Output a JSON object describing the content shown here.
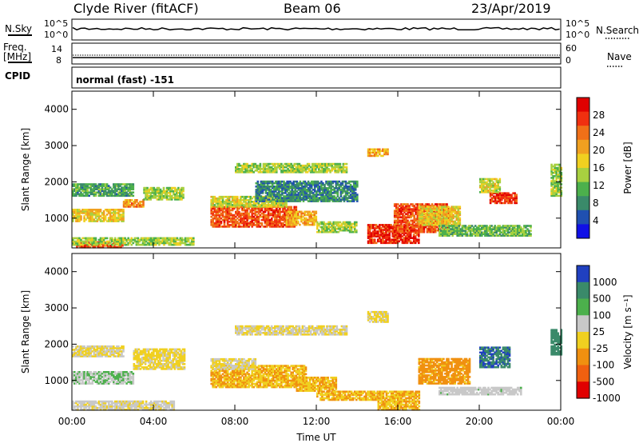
{
  "header": {
    "station": "Clyde River (fitACF)",
    "beam": "Beam 06",
    "date": "23/Apr/2019"
  },
  "strips": {
    "nsky_label": "N.Sky",
    "nsky_ticks": [
      "10^5",
      "10^0"
    ],
    "nsearch_label": "N.Search",
    "nsearch_ticks": [
      "10^5",
      "10^0"
    ],
    "freq_label": "Freq.",
    "freq_unit": "[MHz]",
    "freq_ticks": [
      "14",
      "8"
    ],
    "nave_label": "Nave",
    "nave_ticks": [
      "60",
      "0"
    ],
    "cpid_label": "CPID",
    "cpid_value": "normal (fast) -151"
  },
  "chart_data": [
    {
      "type": "heatmap",
      "name": "power",
      "ylabel": "Slant Range [km]",
      "xlabel": "",
      "yticks": [
        "1000",
        "2000",
        "3000",
        "4000"
      ],
      "xticks": [
        "00:00",
        "04:00",
        "08:00",
        "12:00",
        "16:00",
        "20:00",
        "00:00"
      ],
      "xlim_hours": [
        0,
        24
      ],
      "ylim_km": [
        180,
        4500
      ],
      "colorbar": {
        "label": "Power [dB]",
        "ticks": [
          "4",
          "8",
          "12",
          "16",
          "20",
          "24",
          "28"
        ],
        "colors": [
          "#1010e6",
          "#2050b0",
          "#3a8a6a",
          "#4cb04c",
          "#a8d040",
          "#f0d020",
          "#f0a020",
          "#f07018",
          "#f03010",
          "#e00000"
        ],
        "range": [
          0,
          32
        ]
      },
      "regions": [
        {
          "t": [
            0.0,
            2.5
          ],
          "r": [
            900,
            1250
          ],
          "v": 18
        },
        {
          "t": [
            2.5,
            3.5
          ],
          "r": [
            1300,
            1500
          ],
          "v": 22
        },
        {
          "t": [
            3.5,
            5.5
          ],
          "r": [
            1500,
            1850
          ],
          "v": 14
        },
        {
          "t": [
            0.0,
            3.0
          ],
          "r": [
            1600,
            1950
          ],
          "v": 10
        },
        {
          "t": [
            0.2,
            2.5
          ],
          "r": [
            180,
            350
          ],
          "v": 26
        },
        {
          "t": [
            0.0,
            6.0
          ],
          "r": [
            250,
            450
          ],
          "v": 14
        },
        {
          "t": [
            6.8,
            11.0
          ],
          "r": [
            750,
            1300
          ],
          "v": 26
        },
        {
          "t": [
            6.8,
            10.5
          ],
          "r": [
            1300,
            1600
          ],
          "v": 16
        },
        {
          "t": [
            10.5,
            12.0
          ],
          "r": [
            800,
            1200
          ],
          "v": 20
        },
        {
          "t": [
            8.0,
            13.5
          ],
          "r": [
            2250,
            2500
          ],
          "v": 14
        },
        {
          "t": [
            9.0,
            14.0
          ],
          "r": [
            1450,
            2000
          ],
          "v": 8
        },
        {
          "t": [
            12.0,
            14.0
          ],
          "r": [
            600,
            900
          ],
          "v": 14
        },
        {
          "t": [
            14.5,
            17.0
          ],
          "r": [
            300,
            800
          ],
          "v": 28
        },
        {
          "t": [
            15.8,
            18.5
          ],
          "r": [
            600,
            1400
          ],
          "v": 26
        },
        {
          "t": [
            17.0,
            19.0
          ],
          "r": [
            800,
            1300
          ],
          "v": 18
        },
        {
          "t": [
            18.0,
            22.5
          ],
          "r": [
            500,
            800
          ],
          "v": 12
        },
        {
          "t": [
            20.5,
            21.8
          ],
          "r": [
            1400,
            1700
          ],
          "v": 28
        },
        {
          "t": [
            20.0,
            21.0
          ],
          "r": [
            1700,
            2100
          ],
          "v": 16
        },
        {
          "t": [
            23.5,
            24.0
          ],
          "r": [
            1600,
            2500
          ],
          "v": 14
        },
        {
          "t": [
            14.5,
            15.5
          ],
          "r": [
            2700,
            2900
          ],
          "v": 20
        }
      ]
    },
    {
      "type": "heatmap",
      "name": "velocity",
      "ylabel": "Slant Range [km]",
      "xlabel": "Time UT",
      "yticks": [
        "1000",
        "2000",
        "3000",
        "4000"
      ],
      "xticks": [
        "00:00",
        "04:00",
        "08:00",
        "12:00",
        "16:00",
        "20:00",
        "00:00"
      ],
      "xlim_hours": [
        0,
        24
      ],
      "ylim_km": [
        180,
        4500
      ],
      "colorbar": {
        "label": "Velocity [m s⁻¹]",
        "ticks": [
          "1000",
          "500",
          "100",
          "25",
          "-25",
          "-100",
          "-500",
          "-1000"
        ],
        "colors": [
          "#2040c0",
          "#3a8a6a",
          "#4cb04c",
          "#c8c8c8",
          "#f0d020",
          "#f09010",
          "#f06010",
          "#e00000"
        ],
        "range": [
          -1250,
          1250
        ]
      },
      "regions": [
        {
          "t": [
            0.0,
            3.0
          ],
          "r": [
            900,
            1250
          ],
          "v": 300
        },
        {
          "t": [
            0.0,
            2.5
          ],
          "r": [
            1650,
            1950
          ],
          "v": 0
        },
        {
          "t": [
            3.0,
            5.5
          ],
          "r": [
            1300,
            1850
          ],
          "v": -60
        },
        {
          "t": [
            0.0,
            5.0
          ],
          "r": [
            180,
            450
          ],
          "v": 60
        },
        {
          "t": [
            6.8,
            11.5
          ],
          "r": [
            800,
            1400
          ],
          "v": -300
        },
        {
          "t": [
            6.8,
            9.0
          ],
          "r": [
            1300,
            1600
          ],
          "v": 0
        },
        {
          "t": [
            8.0,
            13.5
          ],
          "r": [
            2250,
            2500
          ],
          "v": 0
        },
        {
          "t": [
            11.0,
            13.0
          ],
          "r": [
            700,
            1100
          ],
          "v": -300
        },
        {
          "t": [
            12.0,
            15.0
          ],
          "r": [
            450,
            700
          ],
          "v": -300
        },
        {
          "t": [
            15.0,
            17.0
          ],
          "r": [
            180,
            700
          ],
          "v": -300
        },
        {
          "t": [
            17.0,
            19.5
          ],
          "r": [
            900,
            1600
          ],
          "v": -400
        },
        {
          "t": [
            18.0,
            22.0
          ],
          "r": [
            600,
            800
          ],
          "v": 200
        },
        {
          "t": [
            20.0,
            21.5
          ],
          "r": [
            1350,
            1900
          ],
          "v": 900
        },
        {
          "t": [
            23.5,
            24.0
          ],
          "r": [
            1700,
            2400
          ],
          "v": 800
        },
        {
          "t": [
            14.5,
            15.5
          ],
          "r": [
            2600,
            2900
          ],
          "v": -60
        }
      ]
    }
  ]
}
